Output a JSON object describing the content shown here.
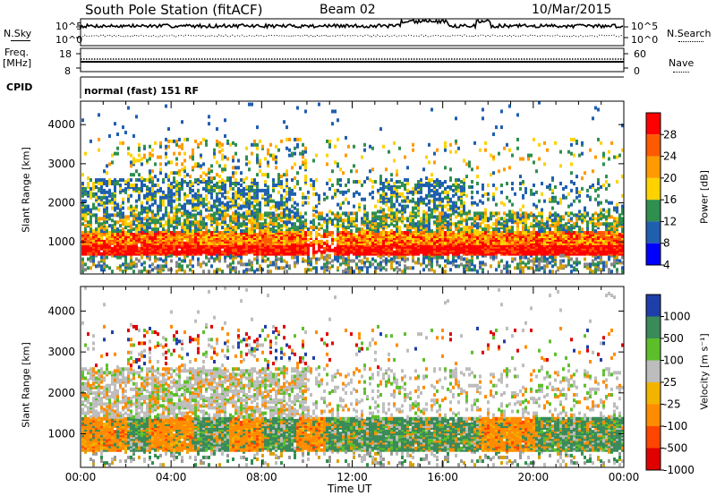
{
  "header": {
    "station": "South Pole Station (fitACF)",
    "beam": "Beam 02",
    "date": "10/Mar/2015"
  },
  "side_labels": {
    "nsky": "N.Sky",
    "nsearch": "N.Search",
    "freq_line1": "Freq.",
    "freq_line2": "[MHz]",
    "nave": "Nave",
    "cpid": "CPID"
  },
  "noise_panel": {
    "left_ticks": [
      "10^5",
      "10^0"
    ],
    "right_ticks": [
      "10^5",
      "10^0"
    ]
  },
  "freq_panel": {
    "left_ticks": [
      "18",
      "8"
    ],
    "right_ticks": [
      "60",
      "0"
    ]
  },
  "cpid_panel": {
    "text": "normal (fast) 151 RF"
  },
  "chart_data": [
    {
      "type": "heatmap",
      "quantity": "Power",
      "ylabel": "Slant Range [km]",
      "y_ticks": [
        "1000",
        "2000",
        "3000",
        "4000"
      ],
      "ylim": [
        180,
        4600
      ],
      "x_ticks": [
        "00:00",
        "04:00",
        "08:00",
        "12:00",
        "16:00",
        "20:00",
        "00:00"
      ],
      "xlim_hours": [
        0,
        24
      ],
      "colorbar": {
        "label": "Power [dB]",
        "ticks": [
          "28",
          "24",
          "20",
          "16",
          "12",
          "8",
          "4"
        ],
        "colors": [
          "#ff0000",
          "#ff5a00",
          "#ff9a00",
          "#ffd200",
          "#2f8f4f",
          "#1f5fb0",
          "#0000ff"
        ]
      }
    },
    {
      "type": "heatmap",
      "quantity": "Velocity",
      "ylabel": "Slant Range [km]",
      "y_ticks": [
        "1000",
        "2000",
        "3000",
        "4000"
      ],
      "ylim": [
        180,
        4600
      ],
      "x_ticks": [
        "00:00",
        "04:00",
        "08:00",
        "12:00",
        "16:00",
        "20:00",
        "00:00"
      ],
      "xlim_hours": [
        0,
        24
      ],
      "xlabel": "Time UT",
      "colorbar": {
        "label": "Velocity [m s⁻¹]",
        "ticks": [
          "1000",
          "500",
          "100",
          "25",
          "-25",
          "-100",
          "-500",
          "-1000"
        ],
        "colors": [
          "#1e3fa8",
          "#3a8a5a",
          "#5cbf2a",
          "#bdbdbd",
          "#f2b400",
          "#ff8c00",
          "#ff4500",
          "#e00000"
        ]
      }
    }
  ]
}
